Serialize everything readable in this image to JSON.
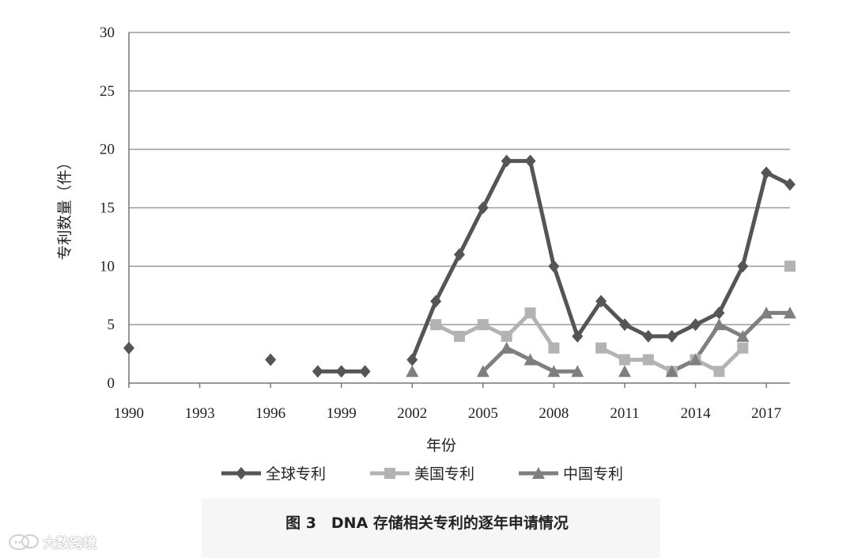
{
  "chart_data": {
    "type": "line",
    "title": "",
    "xlabel": "年份",
    "ylabel": "专利数量（件）",
    "xlim": [
      1990,
      2018
    ],
    "ylim": [
      0,
      30
    ],
    "x_ticks": [
      1990,
      1993,
      1996,
      1999,
      2002,
      2005,
      2008,
      2011,
      2014,
      2017
    ],
    "y_ticks": [
      0,
      5,
      10,
      15,
      20,
      25,
      30
    ],
    "grid": "horizontal",
    "legend_position": "bottom",
    "series": [
      {
        "name": "全球专利",
        "color": "#555555",
        "marker": "diamond",
        "points": [
          [
            1990,
            3
          ],
          [
            1996,
            2
          ],
          [
            1998,
            1
          ],
          [
            1999,
            1
          ],
          [
            2000,
            1
          ],
          [
            2002,
            2
          ],
          [
            2003,
            7
          ],
          [
            2004,
            11
          ],
          [
            2005,
            15
          ],
          [
            2006,
            19
          ],
          [
            2007,
            19
          ],
          [
            2008,
            10
          ],
          [
            2009,
            4
          ],
          [
            2010,
            7
          ],
          [
            2011,
            5
          ],
          [
            2012,
            4
          ],
          [
            2013,
            4
          ],
          [
            2014,
            5
          ],
          [
            2015,
            6
          ],
          [
            2016,
            10
          ],
          [
            2017,
            18
          ],
          [
            2018,
            17
          ]
        ]
      },
      {
        "name": "美国专利",
        "color": "#b3b3b3",
        "marker": "square",
        "points": [
          [
            2003,
            5
          ],
          [
            2004,
            4
          ],
          [
            2005,
            5
          ],
          [
            2006,
            4
          ],
          [
            2007,
            6
          ],
          [
            2008,
            3
          ],
          [
            2010,
            3
          ],
          [
            2011,
            2
          ],
          [
            2012,
            2
          ],
          [
            2013,
            1
          ],
          [
            2014,
            2
          ],
          [
            2015,
            1
          ],
          [
            2016,
            3
          ],
          [
            2018,
            10
          ]
        ]
      },
      {
        "name": "中国专利",
        "color": "#7f7f7f",
        "marker": "triangle",
        "points": [
          [
            2002,
            1
          ],
          [
            2005,
            1
          ],
          [
            2006,
            3
          ],
          [
            2007,
            2
          ],
          [
            2008,
            1
          ],
          [
            2009,
            1
          ],
          [
            2011,
            1
          ],
          [
            2013,
            1
          ],
          [
            2014,
            2
          ],
          [
            2015,
            5
          ],
          [
            2016,
            4
          ],
          [
            2017,
            6
          ],
          [
            2018,
            6
          ]
        ]
      }
    ]
  },
  "caption": "图 3　DNA 存储相关专利的逐年申请情况",
  "watermark": {
    "text": "大数跨境",
    "icon": "chat-bubble-icon"
  }
}
